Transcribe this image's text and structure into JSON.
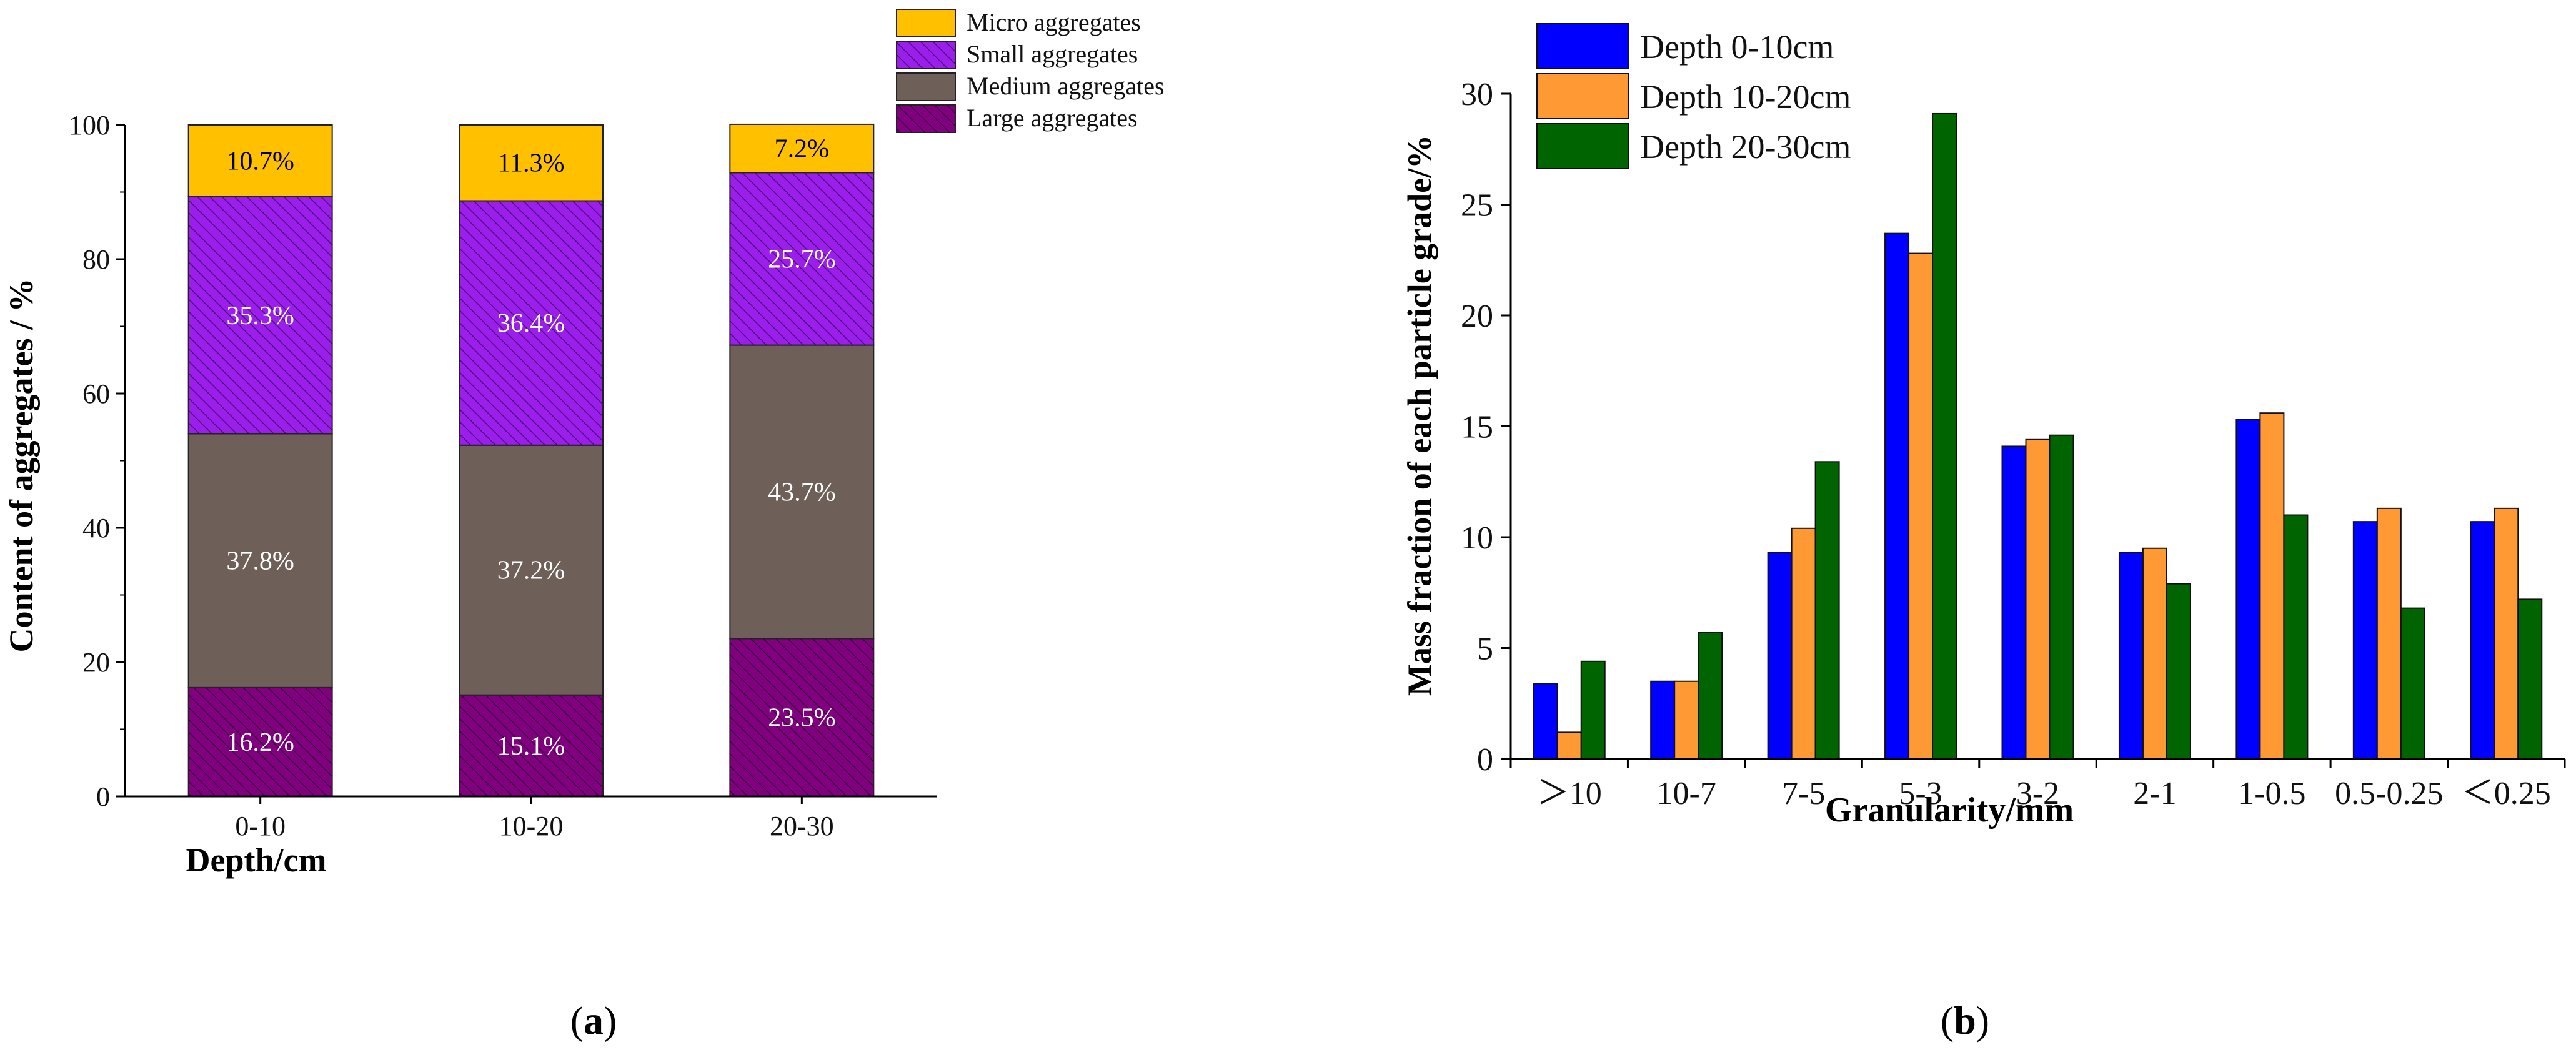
{
  "chart_data": [
    {
      "type": "bar",
      "stacked": true,
      "panel_label": "a",
      "title": "",
      "xlabel": "Depth/cm",
      "ylabel": "Content of aggregates / %",
      "categories": [
        "0-10",
        "10-20",
        "20-30"
      ],
      "ylim": [
        0,
        100
      ],
      "yticks": [
        0,
        20,
        40,
        60,
        80,
        100
      ],
      "legend_position": "top-right",
      "series": [
        {
          "name": "Large aggregates",
          "values": [
            16.2,
            15.1,
            23.5
          ],
          "labels": [
            "16.2%",
            "15.1%",
            "23.5%"
          ],
          "color": "#800080",
          "pattern": "hatch"
        },
        {
          "name": "Medium aggregates",
          "values": [
            37.8,
            37.2,
            43.7
          ],
          "labels": [
            "37.8%",
            "37.2%",
            "43.7%"
          ],
          "color": "#6e6058",
          "pattern": "solid"
        },
        {
          "name": "Small aggregates",
          "values": [
            35.3,
            36.4,
            25.7
          ],
          "labels": [
            "35.3%",
            "36.4%",
            "25.7%"
          ],
          "color": "#9b1eea",
          "pattern": "hatch"
        },
        {
          "name": "Micro aggregates",
          "values": [
            10.7,
            11.3,
            7.2
          ],
          "labels": [
            "10.7%",
            "11.3%",
            "7.2%"
          ],
          "color": "#ffc000",
          "pattern": "solid"
        }
      ],
      "legend_order": [
        "Micro aggregates",
        "Small aggregates",
        "Medium aggregates",
        "Large aggregates"
      ]
    },
    {
      "type": "bar",
      "stacked": false,
      "panel_label": "b",
      "title": "",
      "xlabel": "Granularity/mm",
      "ylabel": "Mass fraction of each particle grade/%",
      "categories": [
        "＞10",
        "10-7",
        "7-5",
        "5-3",
        "3-2",
        "2-1",
        "1-0.5",
        "0.5-0.25",
        "＜0.25"
      ],
      "ylim": [
        0,
        30
      ],
      "yticks": [
        0,
        5,
        10,
        15,
        20,
        25,
        30
      ],
      "legend_position": "top-left",
      "series": [
        {
          "name": "Depth 0-10cm",
          "values": [
            3.4,
            3.5,
            9.3,
            23.7,
            14.1,
            9.3,
            15.3,
            10.7,
            10.7
          ],
          "color": "#0000ff"
        },
        {
          "name": "Depth 10-20cm",
          "values": [
            1.2,
            3.5,
            10.4,
            22.8,
            14.4,
            9.5,
            15.6,
            11.3,
            11.3
          ],
          "color": "#ff9933"
        },
        {
          "name": "Depth 20-30cm",
          "values": [
            4.4,
            5.7,
            13.4,
            29.1,
            14.6,
            7.9,
            11.0,
            6.8,
            7.2
          ],
          "color": "#006400"
        }
      ]
    }
  ]
}
